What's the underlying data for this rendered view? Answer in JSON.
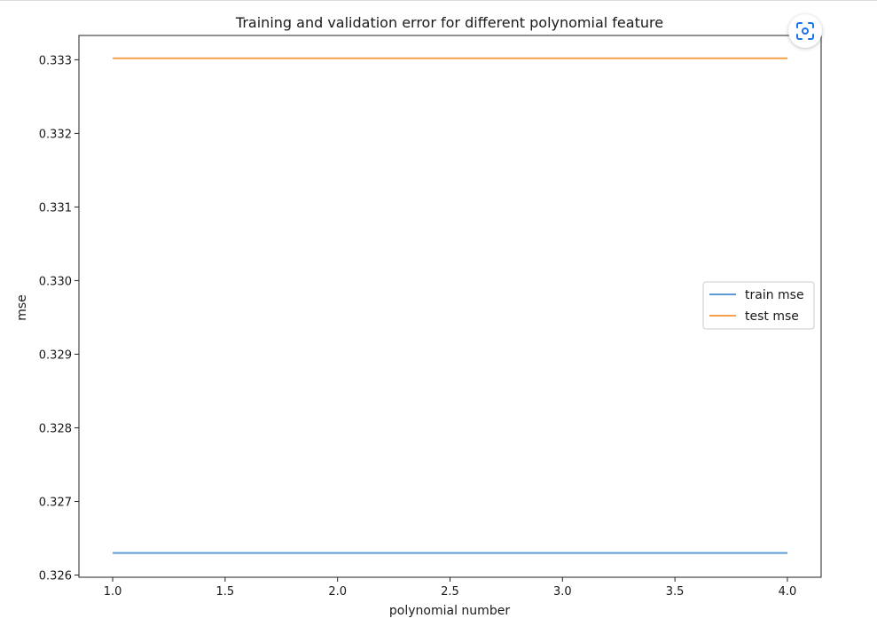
{
  "chart_data": {
    "type": "line",
    "title": "Training and validation error for different polynomial feature",
    "xlabel": "polynomial number",
    "ylabel": "mse",
    "x": [
      1.0,
      2.0,
      3.0,
      4.0
    ],
    "xlim": [
      0.85,
      4.15
    ],
    "ylim": [
      0.32597,
      0.33333
    ],
    "xticks": [
      1.0,
      1.5,
      2.0,
      2.5,
      3.0,
      3.5,
      4.0
    ],
    "xtick_labels": [
      "1.0",
      "1.5",
      "2.0",
      "2.5",
      "3.0",
      "3.5",
      "4.0"
    ],
    "yticks": [
      0.326,
      0.327,
      0.328,
      0.329,
      0.33,
      0.331,
      0.332,
      0.333
    ],
    "ytick_labels": [
      "0.326",
      "0.327",
      "0.328",
      "0.329",
      "0.330",
      "0.331",
      "0.332",
      "0.333"
    ],
    "series": [
      {
        "name": "train mse",
        "values": [
          0.3263,
          0.3263,
          0.3263,
          0.3263
        ],
        "color": "#5b9bd5"
      },
      {
        "name": "test mse",
        "values": [
          0.33302,
          0.33302,
          0.33302,
          0.33302
        ],
        "color": "#f5a04a"
      }
    ],
    "grid": false,
    "legend_position": "center-right"
  },
  "lens_button": {
    "icon": "lens-scan-icon",
    "color": "#1a73e8"
  }
}
